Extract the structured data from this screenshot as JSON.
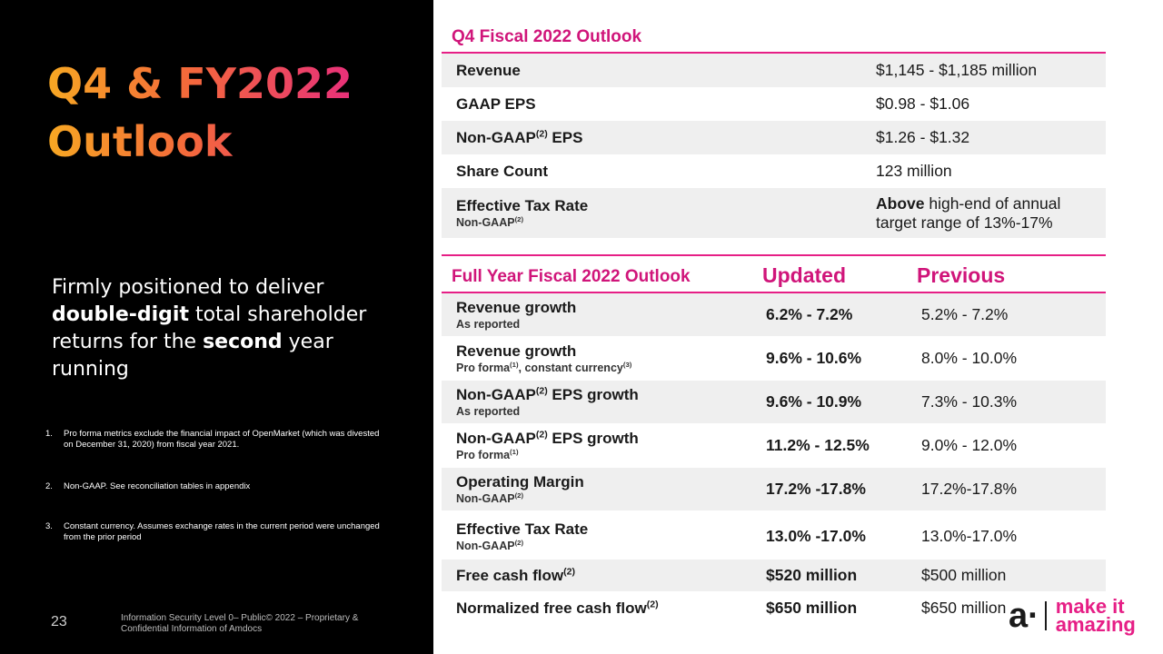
{
  "left": {
    "title_line1": "Q4 & FY2022",
    "title_line2": "Outlook",
    "tagline": {
      "p1": "Firmly positioned to deliver ",
      "b1": "double-digit",
      "p2": " total shareholder returns for the ",
      "b2": "second",
      "p3": " year running"
    },
    "notes": [
      {
        "num": "1.",
        "text": "Pro forma metrics exclude the financial impact of OpenMarket (which was divested on December 31, 2020) from fiscal year 2021."
      },
      {
        "num": "2.",
        "text": "Non-GAAP. See reconciliation tables in appendix"
      },
      {
        "num": "3.",
        "text": "Constant currency. Assumes exchange rates in the current period were unchanged from the prior period"
      }
    ],
    "page_number": "23",
    "footer": "Information Security Level 0– Public© 2022 – Proprietary & Confidential Information of Amdocs"
  },
  "q4": {
    "title": "Q4 Fiscal 2022 Outlook",
    "rows": [
      {
        "label": "Revenue",
        "value": "$1,145 - $1,185 million"
      },
      {
        "label": "GAAP EPS",
        "value": "$0.98 - $1.06"
      },
      {
        "label_pre": "Non-GAAP",
        "label_sup": "(2)",
        "label_post": " EPS",
        "value": "$1.26 - $1.32"
      },
      {
        "label": "Share Count",
        "value": "123 million"
      },
      {
        "label": "Effective Tax Rate",
        "sub_pre": "Non-GAAP",
        "sub_sup": "(2)",
        "value_bold": "Above",
        "value_rest": " high-end of annual target range of 13%-17%"
      }
    ]
  },
  "fy": {
    "title": "Full Year Fiscal 2022 Outlook",
    "col_updated": "Updated",
    "col_previous": "Previous",
    "rows": [
      {
        "l_pre": "Revenue growth",
        "l_sup": "",
        "l_post": "",
        "s_pre": "As reported",
        "s_sup": "",
        "s_mid": "",
        "s_sup2": "",
        "updated": "6.2% - 7.2%",
        "previous": "5.2% - 7.2%"
      },
      {
        "l_pre": "Revenue growth",
        "l_sup": "",
        "l_post": "",
        "s_pre": "Pro forma",
        "s_sup": "(1)",
        "s_mid": ", constant currency",
        "s_sup2": "(3)",
        "updated": "9.6% - 10.6%",
        "previous": "8.0% - 10.0%"
      },
      {
        "l_pre": "Non-GAAP",
        "l_sup": "(2)",
        "l_post": " EPS growth",
        "s_pre": "As reported",
        "s_sup": "",
        "s_mid": "",
        "s_sup2": "",
        "updated": "9.6% - 10.9%",
        "previous": "7.3% - 10.3%"
      },
      {
        "l_pre": "Non-GAAP",
        "l_sup": "(2)",
        "l_post": " EPS growth",
        "s_pre": "Pro forma",
        "s_sup": "(1)",
        "s_mid": "",
        "s_sup2": "",
        "updated": "11.2% - 12.5%",
        "previous": "9.0% - 12.0%"
      },
      {
        "l_pre": "Operating Margin",
        "l_sup": "",
        "l_post": "",
        "s_pre": "Non-GAAP",
        "s_sup": "(2)",
        "s_mid": "",
        "s_sup2": "",
        "updated": "17.2% -17.8%",
        "previous": "17.2%-17.8%"
      },
      {
        "l_pre": "Effective Tax Rate",
        "l_sup": "",
        "l_post": "",
        "s_pre": "Non-GAAP",
        "s_sup": "(2)",
        "s_mid": "",
        "s_sup2": "",
        "updated": "13.0% -17.0%",
        "previous": "13.0%-17.0%"
      },
      {
        "l_pre": "Free cash flow",
        "l_sup": "(2)",
        "l_post": "",
        "s_pre": "",
        "s_sup": "",
        "s_mid": "",
        "s_sup2": "",
        "updated": "$520 million",
        "previous": "$500 million"
      },
      {
        "l_pre": "Normalized free cash flow",
        "l_sup": "(2)",
        "l_post": "",
        "s_pre": "",
        "s_sup": "",
        "s_mid": "",
        "s_sup2": "",
        "updated": "$650 million",
        "previous": "$650 million"
      }
    ]
  },
  "logo": {
    "mark": "a·",
    "line1": "make it",
    "line2": "amazing"
  },
  "colors": {
    "accent": "#e61f86",
    "title_start": "#f7a823",
    "title_end": "#e8307a"
  }
}
